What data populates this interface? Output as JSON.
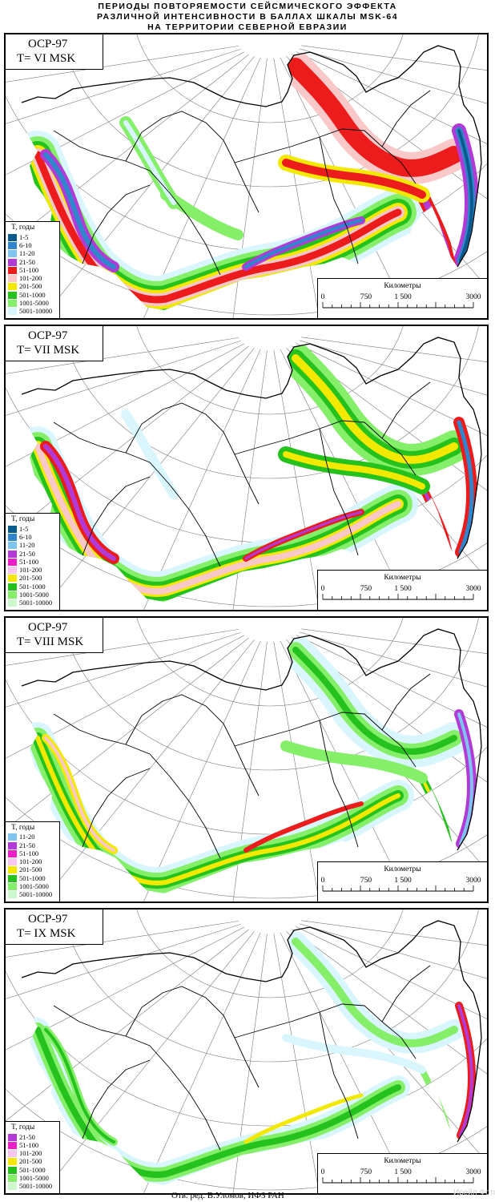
{
  "header": {
    "title_lines": [
      "ПЕРИОДЫ ПОВТОРЯЕМОСТИ СЕЙСМИЧЕСКОГО ЭФФЕКТА",
      "РАЗЛИЧНОЙ ИНТЕНСИВНОСТИ В БАЛЛАХ ШКАЛЫ MSK-64",
      "НА ТЕРРИТОРИИ СЕВЕРНОЙ ЕВРАЗИИ"
    ]
  },
  "legend_colors": {
    "1-5": "#0b5a8e",
    "6-10": "#2f86cc",
    "11-20": "#7ec4ee",
    "21-50": "#b23ad6",
    "51-100": "#ec1c1c",
    "101-200": "#f9c8c8",
    "201-500": "#f3e900",
    "501-1000": "#25c21e",
    "1001-5000": "#86ef6a",
    "5001-10000": "#d9f6ff"
  },
  "panels": [
    {
      "model": "ОСР-97",
      "intensity": "T= VI MSK",
      "legend_title": "T, годы",
      "legend": [
        {
          "label": "1-5",
          "color": "#0b5a8e"
        },
        {
          "label": "6-10",
          "color": "#2f86cc"
        },
        {
          "label": "11-20",
          "color": "#7ec4ee"
        },
        {
          "label": "21-50",
          "color": "#b23ad6"
        },
        {
          "label": "51-100",
          "color": "#ec1c1c"
        },
        {
          "label": "101-200",
          "color": "#f9c8c8"
        },
        {
          "label": "201-500",
          "color": "#f3e900"
        },
        {
          "label": "501-1000",
          "color": "#25c21e"
        },
        {
          "label": "1001-5000",
          "color": "#86ef6a"
        },
        {
          "label": "5001-10000",
          "color": "#d9f6ff"
        }
      ],
      "scale": {
        "title": "Километры",
        "ticks": [
          "0",
          "750",
          "1 500",
          "3000"
        ]
      }
    },
    {
      "model": "ОСР-97",
      "intensity": "T= VII MSK",
      "legend_title": "T, годы",
      "legend": [
        {
          "label": "1-5",
          "color": "#0b5a8e"
        },
        {
          "label": "6-10",
          "color": "#2f86cc"
        },
        {
          "label": "11-20",
          "color": "#7ec4ee"
        },
        {
          "label": "21-50",
          "color": "#b23ad6"
        },
        {
          "label": "51-100",
          "color": "#ec1ec8"
        },
        {
          "label": "101-200",
          "color": "#f8c6f0"
        },
        {
          "label": "201-500",
          "color": "#f3e900"
        },
        {
          "label": "501-1000",
          "color": "#25c21e"
        },
        {
          "label": "1001-5000",
          "color": "#86ef6a"
        },
        {
          "label": "5001-10000",
          "color": "#cdf8cd"
        }
      ],
      "scale": {
        "title": "Километры",
        "ticks": [
          "0",
          "750",
          "1 500",
          "3000"
        ]
      }
    },
    {
      "model": "ОСР-97",
      "intensity": "T= VIII MSK",
      "legend_title": "T, годы",
      "legend": [
        {
          "label": "11-20",
          "color": "#7ec4ee"
        },
        {
          "label": "21-50",
          "color": "#b23ad6"
        },
        {
          "label": "51-100",
          "color": "#ec1ec8"
        },
        {
          "label": "101-200",
          "color": "#f8c6f0"
        },
        {
          "label": "201-500",
          "color": "#f3e900"
        },
        {
          "label": "501-1000",
          "color": "#25c21e"
        },
        {
          "label": "1001-5000",
          "color": "#86ef6a"
        },
        {
          "label": "5001-10000",
          "color": "#cdf8cd"
        }
      ],
      "scale": {
        "title": "Километры",
        "ticks": [
          "0",
          "750",
          "1 500",
          "3000"
        ]
      }
    },
    {
      "model": "ОСР-97",
      "intensity": "T= IX MSK",
      "legend_title": "T, годы",
      "legend": [
        {
          "label": "21-50",
          "color": "#b23ad6"
        },
        {
          "label": "51-100",
          "color": "#ec1ec8"
        },
        {
          "label": "101-200",
          "color": "#f8c6f0"
        },
        {
          "label": "201-500",
          "color": "#f3e900"
        },
        {
          "label": "501-1000",
          "color": "#25c21e"
        },
        {
          "label": "1001-5000",
          "color": "#86ef6a"
        },
        {
          "label": "5001-10000",
          "color": "#cdf8cd"
        }
      ],
      "scale": {
        "title": "Километры",
        "ticks": [
          "0",
          "750",
          "1 500",
          "3000"
        ]
      }
    }
  ],
  "footer": {
    "credit": "Отв. ред. В.Уломов, ИФЗ РАН",
    "watermark": "Ирейл Фото"
  }
}
